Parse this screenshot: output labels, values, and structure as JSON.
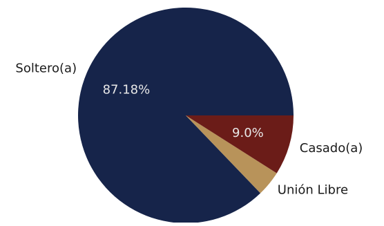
{
  "chart_data": {
    "type": "pie",
    "title": "",
    "slices": [
      {
        "label": "Soltero(a)",
        "value": 87.18,
        "pct_label": "87.18%",
        "color": "#16244a"
      },
      {
        "label": "Unión Libre",
        "value": 3.82,
        "pct_label": "",
        "color": "#b8935a"
      },
      {
        "label": "Casado(a)",
        "value": 9.0,
        "pct_label": "9.0%",
        "color": "#6b1c18"
      }
    ],
    "start": "east",
    "direction": "counterclockwise"
  }
}
